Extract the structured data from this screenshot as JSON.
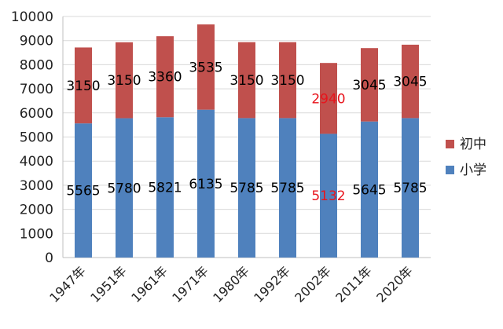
{
  "chart_data": {
    "type": "bar",
    "stacked": true,
    "categories": [
      "1947年",
      "1951年",
      "1961年",
      "1971年",
      "1980年",
      "1992年",
      "2002年",
      "2011年",
      "2020年"
    ],
    "series": [
      {
        "name": "小学",
        "color": "#4F81BD",
        "values": [
          5565,
          5780,
          5821,
          6135,
          5785,
          5785,
          5132,
          5645,
          5785
        ]
      },
      {
        "name": "初中",
        "color": "#C0504D",
        "values": [
          3150,
          3150,
          3360,
          3535,
          3150,
          3150,
          2940,
          3045,
          3045
        ]
      }
    ],
    "data_label_colors": {
      "default": "#000000",
      "highlight": "#e8141c",
      "highlight_category": "2002年"
    },
    "yticks": [
      "0",
      "1000",
      "2000",
      "3000",
      "4000",
      "5000",
      "6000",
      "7000",
      "8000",
      "9000",
      "10000"
    ],
    "ylim": [
      0,
      10000
    ],
    "grid": true,
    "legend_position": "right",
    "legend_order": [
      "初中",
      "小学"
    ]
  }
}
